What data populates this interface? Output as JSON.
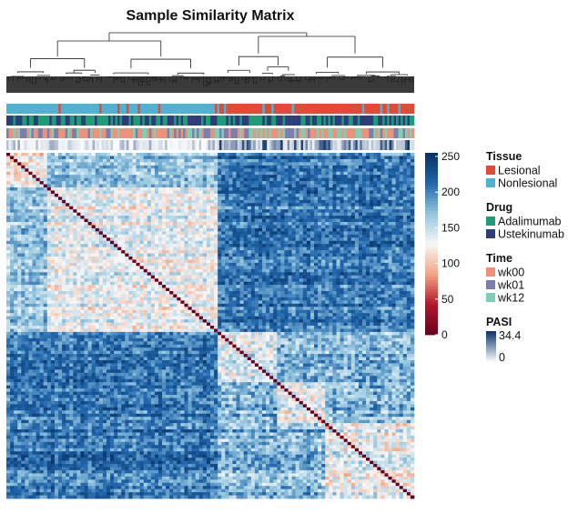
{
  "chart_data": {
    "type": "heatmap",
    "title": "Sample Similarity Matrix",
    "colorbar": {
      "ticks": [
        0,
        50,
        100,
        150,
        200,
        250
      ],
      "range": [
        0,
        255
      ],
      "colors": [
        "#67001f",
        "#b2182b",
        "#f4a582",
        "#f7f7f7",
        "#92c5de",
        "#2166ac",
        "#053061"
      ]
    },
    "row_annotations": [
      "Tissue",
      "Drug",
      "Time",
      "PASI"
    ],
    "clusters": {
      "first_cluster_fraction": 0.52,
      "within_cluster_similarity": "medium-low (90-160)",
      "between_cluster_similarity": "high (180-240)"
    },
    "legends": [
      {
        "title": "Tissue",
        "entries": [
          {
            "label": "Lesional",
            "color": "#e34a33"
          },
          {
            "label": "Nonlesional",
            "color": "#4eb3d3"
          }
        ]
      },
      {
        "title": "Drug",
        "entries": [
          {
            "label": "Adalimumab",
            "color": "#1b9e77"
          },
          {
            "label": "Ustekinumab",
            "color": "#2c3e7a"
          }
        ]
      },
      {
        "title": "Time",
        "entries": [
          {
            "label": "wk00",
            "color": "#f0907a"
          },
          {
            "label": "wk01",
            "color": "#7b7fae"
          },
          {
            "label": "wk12",
            "color": "#7fcfb4"
          }
        ]
      }
    ],
    "pasi_legend": {
      "title": "PASI",
      "max_label": "34.4",
      "min_label": "0",
      "color_low": "#ffffff",
      "color_high": "#08306b"
    }
  }
}
